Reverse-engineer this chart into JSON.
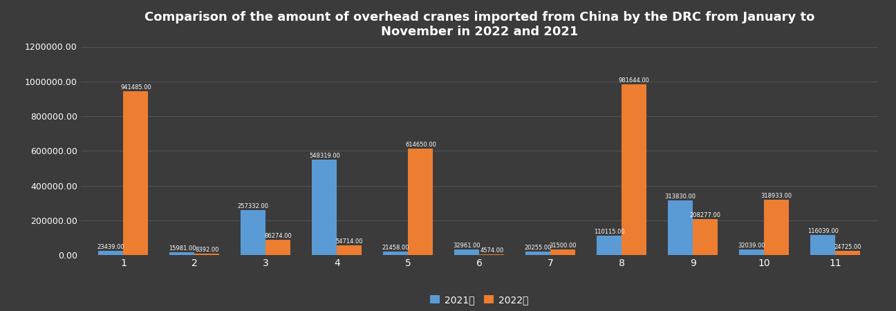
{
  "categories": [
    1,
    2,
    3,
    4,
    5,
    6,
    7,
    8,
    9,
    10,
    11
  ],
  "values_2021": [
    23439,
    15981,
    257332,
    548319,
    21458,
    32961,
    20255,
    110115,
    313830,
    32039,
    116039
  ],
  "values_2022": [
    941485,
    8392,
    86274,
    54714,
    614650,
    4574,
    31500,
    981644,
    208277,
    318933,
    24725
  ],
  "color_2021": "#5b9bd5",
  "color_2022": "#ed7d31",
  "title": "Comparison of the amount of overhead cranes imported from China by the DRC from January to\nNovember in 2022 and 2021",
  "legend_2021": "2021年",
  "legend_2022": "2022年",
  "ylim": [
    0,
    1200000
  ],
  "background_color": "#3b3b3b",
  "grid_color": "#555555",
  "text_color": "#ffffff",
  "bar_label_fontsize": 6.0,
  "title_fontsize": 13,
  "ytick_labels": [
    "0.00",
    "200000.00",
    "400000.00",
    "600000.00",
    "800000.00",
    "1000000.00",
    "1200000.00"
  ],
  "ytick_values": [
    0,
    200000,
    400000,
    600000,
    800000,
    1000000,
    1200000
  ]
}
